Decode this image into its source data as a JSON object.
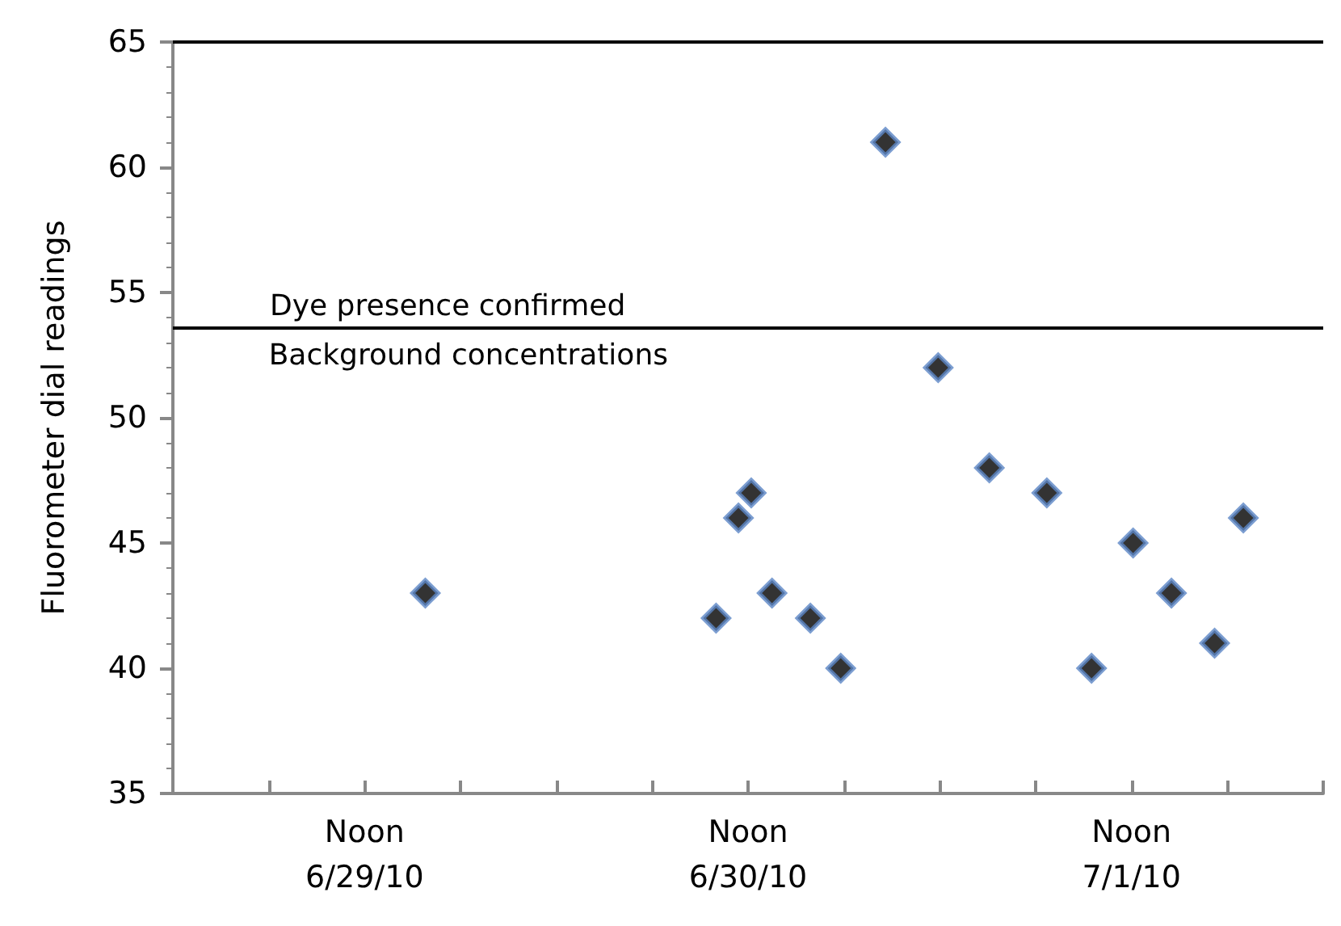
{
  "chart_data": {
    "type": "scatter",
    "ylabel": "Fluorometer dial readings",
    "x": [
      "--06-29T15:48",
      "--06-30T10:00",
      "--06-30T11:24",
      "--06-30T12:12",
      "--06-30T13:30",
      "--06-30T15:54",
      "--06-30T17:48",
      "--06-30T20:36",
      "--06-30T23:54",
      "--07-01T03:06",
      "--07-01T06:42",
      "--07-01T09:30",
      "--07-01T12:06",
      "--07-01T14:30",
      "--07-01T17:12",
      "--07-01T19:00"
    ],
    "values": [
      43,
      42,
      46,
      47,
      43,
      42,
      40,
      61,
      52,
      48,
      47,
      40,
      45,
      43,
      41,
      46
    ],
    "color": "#000000",
    "marker": "diamond",
    "grid": false,
    "xlim": [
      "--06-29T00:00",
      "--07-02T00:00"
    ],
    "xticks": [
      {
        "value": "--06-29T00:00",
        "label": null
      },
      {
        "value": "--06-29T06:00",
        "label": null
      },
      {
        "value": "--06-29T12:00",
        "label": "Noon\n6/29/10"
      },
      {
        "value": "--06-29T18:00",
        "label": null
      },
      {
        "value": "--06-30T00:00",
        "label": null
      },
      {
        "value": "--06-30T06:00",
        "label": null
      },
      {
        "value": "--06-30T12:00",
        "label": "Noon\n6/30/10"
      },
      {
        "value": "--06-30T18:00",
        "label": null
      },
      {
        "value": "--07-01T00:00",
        "label": null
      },
      {
        "value": "--07-01T06:00",
        "label": null
      },
      {
        "value": "--07-01T12:00",
        "label": "Noon\n7/1/10"
      },
      {
        "value": "--07-01T18:00",
        "label": null
      },
      {
        "value": "--07-02T00:00",
        "label": null
      }
    ],
    "ylim": [
      35,
      65
    ],
    "yticks": [
      35,
      40,
      45,
      50,
      55,
      60,
      65
    ],
    "ref_lines": [
      {
        "axis": "y",
        "value": 53.6,
        "label": "Dye presence confirmed",
        "color": "#000000"
      },
      {
        "axis": "y",
        "value": 65,
        "label": null,
        "color": "#000000"
      }
    ],
    "annotations": [
      {
        "text": "Background concentrations",
        "x": "--06-29T06:00",
        "y": 53.6
      }
    ]
  }
}
